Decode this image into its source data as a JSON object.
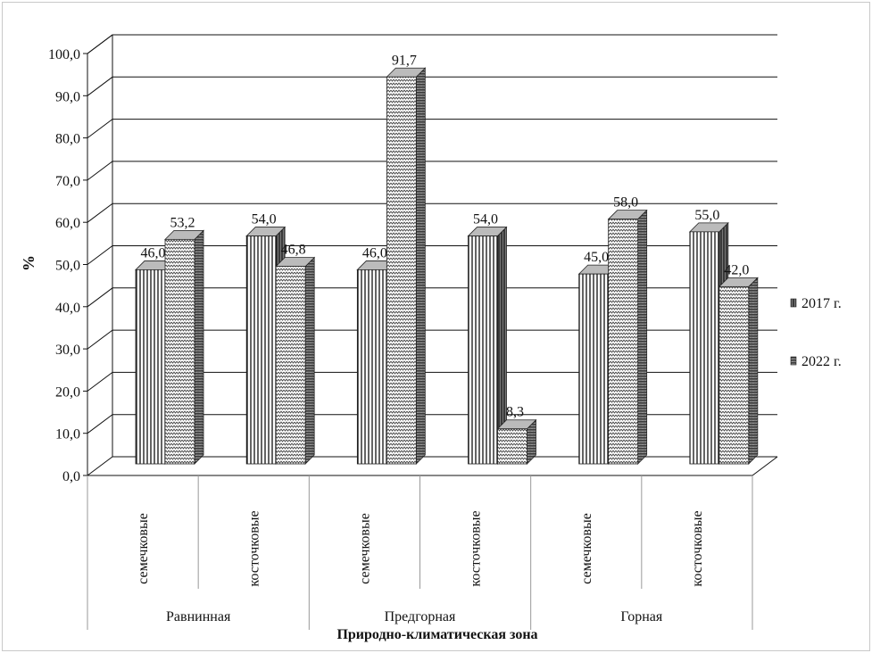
{
  "chart_data": {
    "type": "bar",
    "style": "3d-clustered-column",
    "ylabel": "%",
    "xlabel": "Природно-климатическая зона",
    "ylim": [
      0,
      100
    ],
    "ytick_step": 10,
    "ytick_labels": [
      "0,0",
      "10,0",
      "20,0",
      "30,0",
      "40,0",
      "50,0",
      "60,0",
      "70,0",
      "80,0",
      "90,0",
      "100,0"
    ],
    "grid": true,
    "legend_position": "right",
    "groups": [
      "Равнинная",
      "Предгорная",
      "Горная"
    ],
    "categories": [
      "семечковые",
      "косточковые",
      "семечковые",
      "косточковые",
      "семечковые",
      "косточковые"
    ],
    "series": [
      {
        "name": "2017 г.",
        "values": [
          46.0,
          54.0,
          46.0,
          54.0,
          45.0,
          55.0
        ],
        "labels": [
          "46,0",
          "54,0",
          "46,0",
          "54,0",
          "45,0",
          "55,0"
        ]
      },
      {
        "name": "2022 г.",
        "values": [
          53.2,
          46.8,
          91.7,
          8.3,
          58.0,
          42.0
        ],
        "labels": [
          "53,2",
          "46,8",
          "91,7",
          "8,3",
          "58,0",
          "42,0"
        ]
      }
    ]
  }
}
